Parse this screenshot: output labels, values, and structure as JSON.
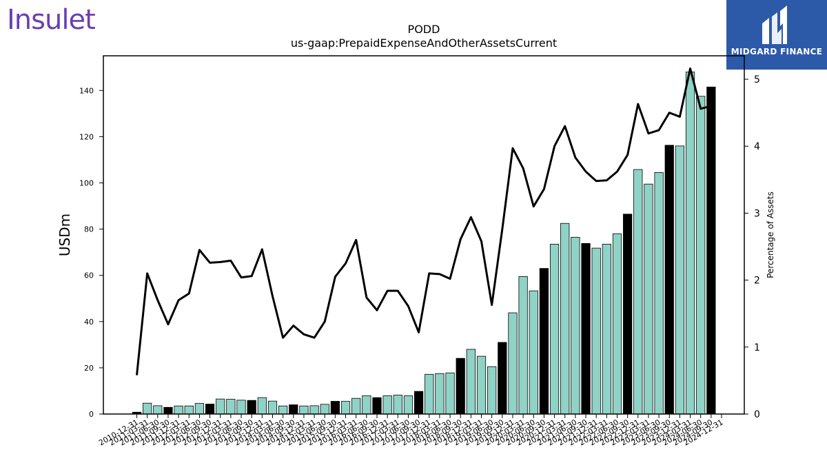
{
  "brand": {
    "company_logo_text": "Insulet",
    "publisher_logo_text": "MIDGARD FINANCE",
    "company_color": "#6a3fb5",
    "publisher_bg": "#2d5aa8"
  },
  "chart_data": {
    "type": "bar",
    "title": "PODD",
    "subtitle": "us-gaap:PrepaidExpenseAndOtherAssetsCurrent",
    "ylabel": "USDm",
    "y2label": "Percentage of Assets",
    "ylim": [
      0,
      155
    ],
    "y2lim": [
      0,
      5.35
    ],
    "yticks": [
      0,
      20,
      40,
      60,
      80,
      100,
      120,
      140
    ],
    "y2ticks": [
      0,
      1,
      2,
      3,
      4,
      5
    ],
    "bar_color": "#8fd3c6",
    "annual_bar_color": "#000000",
    "line_color": "#000000",
    "categories": [
      "2010-12-31",
      "2011-03-31",
      "2011-06-30",
      "2011-09-30",
      "2011-12-31",
      "2012-03-31",
      "2012-06-30",
      "2012-09-30",
      "2012-12-31",
      "2013-03-31",
      "2013-06-30",
      "2013-09-30",
      "2013-12-31",
      "2014-03-31",
      "2014-06-30",
      "2014-09-30",
      "2014-12-31",
      "2015-03-31",
      "2015-06-30",
      "2015-09-30",
      "2015-12-31",
      "2016-03-31",
      "2016-06-30",
      "2016-09-30",
      "2016-12-31",
      "2017-03-31",
      "2017-06-30",
      "2017-09-30",
      "2017-12-31",
      "2018-03-31",
      "2018-06-30",
      "2018-09-30",
      "2018-12-31",
      "2019-03-31",
      "2019-06-30",
      "2019-09-30",
      "2019-12-31",
      "2020-03-31",
      "2020-06-30",
      "2020-09-30",
      "2020-12-31",
      "2021-03-31",
      "2021-06-30",
      "2021-09-30",
      "2021-12-31",
      "2022-03-31",
      "2022-06-30",
      "2022-09-30",
      "2022-12-31",
      "2023-03-31",
      "2023-06-30",
      "2023-09-30",
      "2023-12-31",
      "2024-03-31",
      "2024-06-30",
      "2024-09-30",
      "2024-12-31"
    ],
    "series": [
      {
        "name": "",
        "values": [
          0.8,
          4.7,
          3.6,
          2.9,
          3.5,
          3.5,
          4.6,
          4.3,
          6.5,
          6.4,
          6.0,
          5.9,
          7.1,
          5.6,
          3.5,
          4.0,
          3.5,
          3.6,
          4.2,
          5.5,
          5.5,
          6.8,
          7.9,
          7.1,
          7.9,
          8.2,
          7.9,
          9.8,
          17.2,
          17.5,
          17.8,
          24.1,
          28.0,
          25.0,
          20.5,
          31.0,
          43.8,
          59.5,
          53.3,
          63.0,
          73.5,
          82.5,
          76.5,
          73.8,
          71.8,
          73.5,
          78.0,
          86.5,
          105.8,
          99.5,
          104.5,
          116.3,
          116.0,
          148.0,
          137.5,
          141.5,
          null
        ]
      },
      {
        "name": "",
        "axis": "right",
        "values": [
          0.58,
          2.1,
          1.7,
          1.34,
          1.7,
          1.8,
          2.45,
          2.26,
          2.27,
          2.29,
          2.04,
          2.06,
          2.46,
          1.76,
          1.14,
          1.32,
          1.19,
          1.14,
          1.38,
          2.05,
          2.25,
          2.6,
          1.74,
          1.55,
          1.84,
          1.84,
          1.61,
          1.22,
          2.1,
          2.09,
          2.02,
          2.61,
          2.94,
          2.58,
          1.63,
          2.76,
          3.97,
          3.67,
          3.1,
          3.36,
          4.0,
          4.3,
          3.83,
          3.62,
          3.48,
          3.49,
          3.62,
          3.87,
          4.63,
          4.19,
          4.24,
          4.5,
          4.44,
          5.16,
          4.56,
          4.6,
          null
        ]
      }
    ],
    "annual_categories": [
      "2010-12-31",
      "2011-09-30",
      "2012-09-30",
      "2013-09-30",
      "2014-09-30",
      "2015-09-30",
      "2016-09-30",
      "2017-09-30",
      "2018-09-30",
      "2019-09-30",
      "2020-09-30",
      "2021-09-30",
      "2022-09-30",
      "2023-09-30",
      "2024-09-30"
    ],
    "grid": false,
    "legend": "none"
  }
}
